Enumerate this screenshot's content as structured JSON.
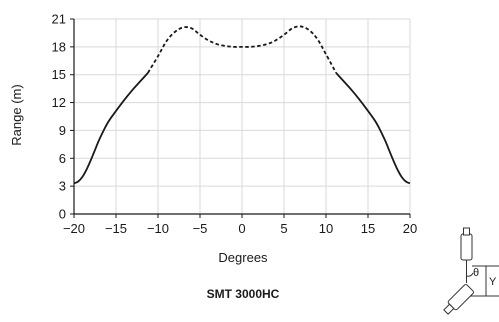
{
  "chart_data": {
    "type": "line",
    "title": "",
    "subtitle": "SMT 3000HC",
    "xlabel": "Degrees",
    "ylabel": "Range (m)",
    "xlim": [
      -20,
      20
    ],
    "ylim": [
      0,
      21
    ],
    "xticks": [
      "−20",
      "−15",
      "−10",
      "−5",
      "0",
      "5",
      "10",
      "15",
      "20"
    ],
    "yticks": [
      "0",
      "3",
      "6",
      "9",
      "12",
      "15",
      "18",
      "21"
    ],
    "grid": true,
    "series": [
      {
        "style": "solid",
        "x": [
          -20,
          -19.5,
          -19,
          -18.5,
          -18,
          -17.5,
          -17,
          -16,
          -15,
          -14,
          -13,
          -12,
          -11.2
        ],
        "y": [
          3.3,
          3.5,
          4.0,
          4.8,
          5.8,
          6.9,
          8.0,
          9.8,
          11.1,
          12.3,
          13.4,
          14.4,
          15.2
        ]
      },
      {
        "style": "dashed",
        "x": [
          -11.2,
          -10,
          -9,
          -8,
          -7,
          -6,
          -5,
          -4,
          -3,
          -2,
          -1,
          0,
          1,
          2,
          3,
          4,
          5,
          6,
          7,
          8,
          9,
          10,
          11.2
        ],
        "y": [
          15.2,
          17.0,
          18.6,
          19.6,
          20.1,
          20.0,
          19.3,
          18.7,
          18.3,
          18.1,
          18.0,
          18.0,
          18.0,
          18.1,
          18.3,
          18.7,
          19.3,
          20.0,
          20.2,
          19.8,
          18.8,
          17.2,
          15.2
        ]
      },
      {
        "style": "solid",
        "x": [
          11.2,
          12,
          13,
          14,
          15,
          16,
          17,
          17.5,
          18,
          18.5,
          19,
          19.5,
          20
        ],
        "y": [
          15.2,
          14.4,
          13.4,
          12.3,
          11.1,
          9.8,
          8.0,
          6.9,
          5.8,
          4.8,
          4.0,
          3.5,
          3.3
        ]
      }
    ],
    "annotations": [
      "θ",
      "Y"
    ]
  },
  "colors": {
    "line": "#1a1a1a",
    "grid": "#d9d9d9",
    "axis": "#1a1a1a",
    "diagram": "#333333"
  },
  "icons": {
    "diagram": "sensor-angle-diagram"
  }
}
